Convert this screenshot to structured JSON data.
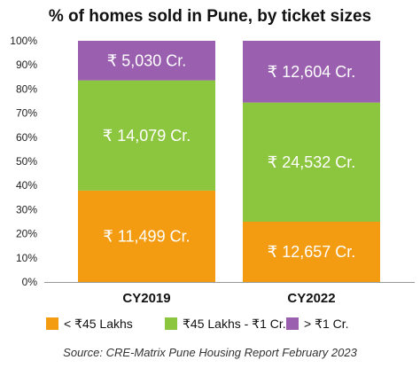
{
  "chart_data": {
    "type": "bar",
    "stacked": true,
    "title": "% of homes sold in Pune, by ticket sizes",
    "categories": [
      "CY2019",
      "CY2022"
    ],
    "ylim": [
      0,
      100
    ],
    "yticks": [
      "0%",
      "10%",
      "20%",
      "30%",
      "40%",
      "50%",
      "60%",
      "70%",
      "80%",
      "90%",
      "100%"
    ],
    "series": [
      {
        "name": "< ₹45 Lakhs",
        "color": "#F39C12",
        "values": [
          37.9,
          25.0
        ],
        "labels": [
          "₹ 11,499 Cr.",
          "₹ 12,657 Cr."
        ]
      },
      {
        "name": "₹45 Lakhs - ₹1 Cr.",
        "color": "#8CC63F",
        "values": [
          45.7,
          49.4
        ],
        "labels": [
          "₹ 14,079 Cr.",
          "₹ 24,532 Cr."
        ]
      },
      {
        "name": "> ₹1 Cr.",
        "color": "#9B5FB0",
        "values": [
          16.4,
          25.6
        ],
        "labels": [
          "₹ 5,030 Cr.",
          "₹ 12,604 Cr."
        ]
      }
    ],
    "legend_position": "bottom",
    "source": "Source: CRE-Matrix Pune Housing Report February 2023"
  }
}
